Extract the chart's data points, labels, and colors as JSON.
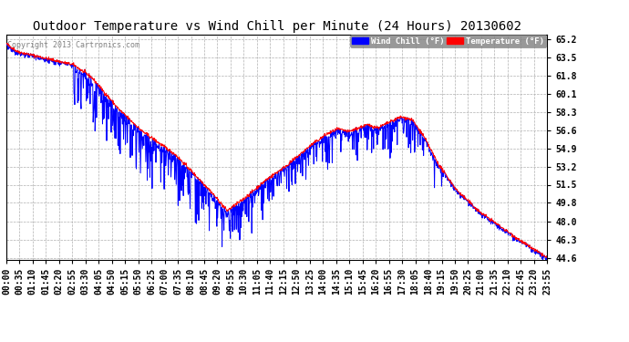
{
  "title": "Outdoor Temperature vs Wind Chill per Minute (24 Hours) 20130602",
  "copyright": "Copyright 2013 Cartronics.com",
  "ylabel_right_ticks": [
    65.2,
    63.5,
    61.8,
    60.1,
    58.3,
    56.6,
    54.9,
    53.2,
    51.5,
    49.8,
    48.0,
    46.3,
    44.6
  ],
  "ymin": 44.6,
  "ymax": 65.2,
  "temp_color": "#ff0000",
  "windchill_color": "#0000ff",
  "bg_color": "#ffffff",
  "plot_bg_color": "#ffffff",
  "grid_color": "#b0b0b0",
  "title_fontsize": 10,
  "tick_fontsize": 7,
  "copyright_fontsize": 6,
  "x_tick_labels": [
    "00:00",
    "00:35",
    "01:10",
    "01:45",
    "02:20",
    "02:55",
    "03:30",
    "04:05",
    "04:50",
    "05:15",
    "05:50",
    "06:25",
    "07:00",
    "07:35",
    "08:10",
    "08:45",
    "09:20",
    "09:55",
    "10:30",
    "11:05",
    "11:40",
    "12:15",
    "12:50",
    "13:25",
    "14:00",
    "14:35",
    "15:10",
    "15:45",
    "16:20",
    "16:55",
    "17:30",
    "18:05",
    "18:40",
    "19:15",
    "19:50",
    "20:25",
    "21:00",
    "21:35",
    "22:10",
    "22:45",
    "23:20",
    "23:55"
  ],
  "n_minutes": 1440
}
